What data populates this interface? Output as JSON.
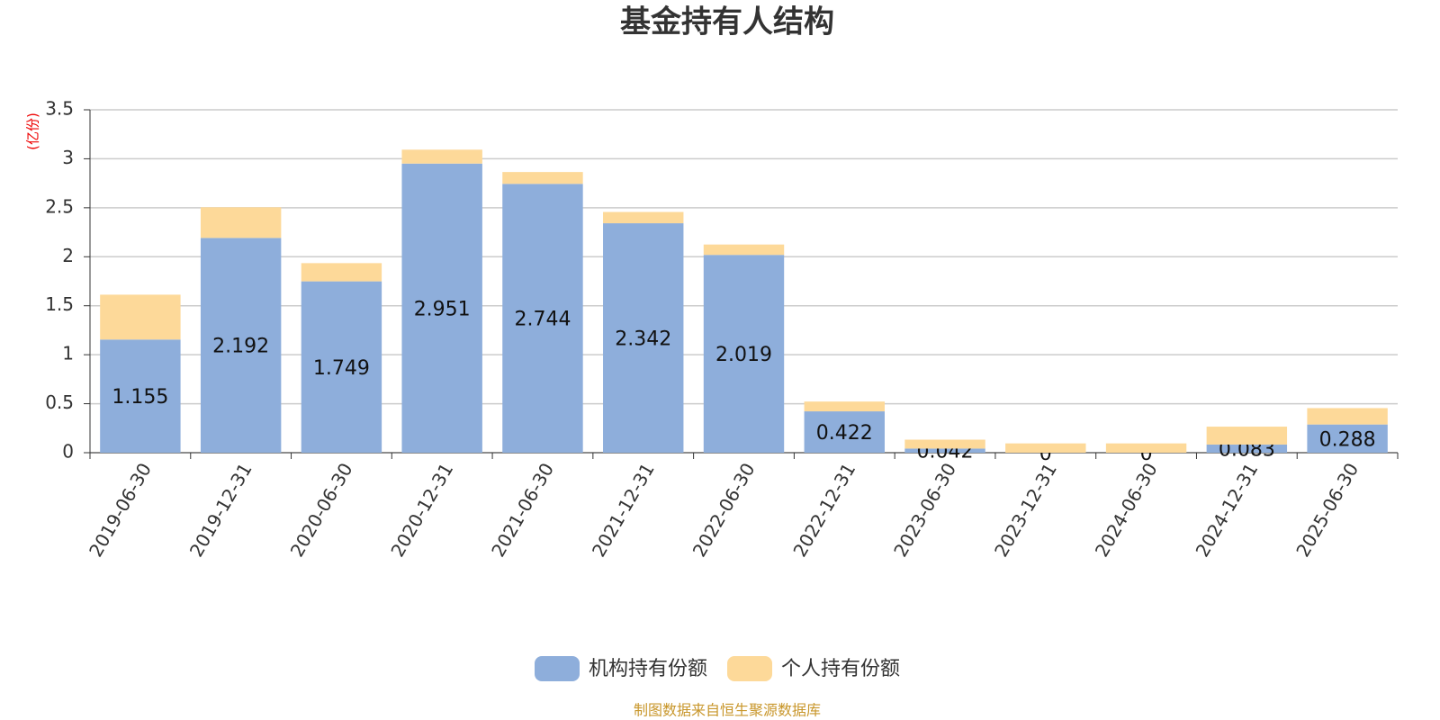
{
  "chart_data": {
    "type": "stacked_bar",
    "title": "基金持有人结构",
    "y_unit": "(亿份)",
    "source": "制图数据来自恒生聚源数据库",
    "categories": [
      "2019-06-30",
      "2019-12-31",
      "2020-06-30",
      "2020-12-31",
      "2021-06-30",
      "2021-12-31",
      "2022-06-30",
      "2022-12-31",
      "2023-06-30",
      "2023-12-31",
      "2024-06-30",
      "2024-12-31",
      "2025-06-30"
    ],
    "series": [
      {
        "name": "机构持有份额",
        "color": "#8eaedb",
        "values": [
          1.155,
          2.192,
          1.749,
          2.951,
          2.744,
          2.342,
          2.019,
          0.422,
          0.042,
          0,
          0,
          0.083,
          0.288
        ]
      },
      {
        "name": "个人持有份额",
        "color": "#fdd999",
        "values": [
          0.458,
          0.313,
          0.186,
          0.142,
          0.121,
          0.115,
          0.106,
          0.1,
          0.091,
          0.095,
          0.095,
          0.183,
          0.167
        ]
      }
    ],
    "ylim": [
      0,
      3.5
    ],
    "yticks": [
      0,
      0.5,
      1,
      1.5,
      2,
      2.5,
      3,
      3.5
    ],
    "grid": true
  }
}
